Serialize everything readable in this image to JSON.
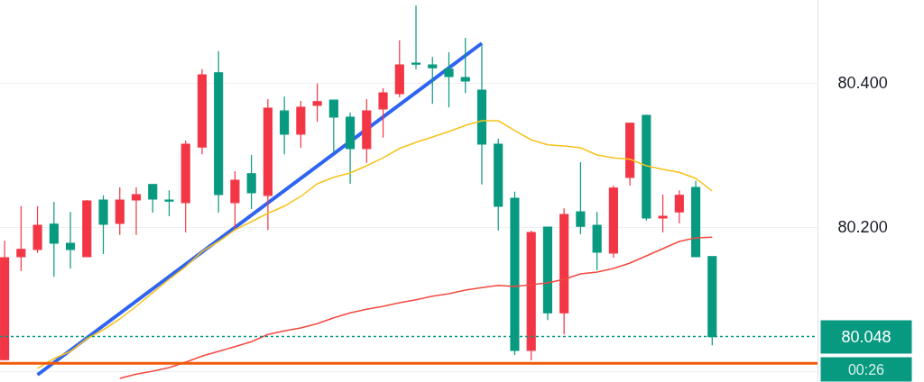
{
  "chart_data": {
    "type": "candlestick",
    "categories": [
      null,
      null,
      null,
      null,
      null,
      null,
      null,
      null,
      null,
      null,
      null,
      null,
      null,
      null,
      null,
      null,
      null,
      null,
      null,
      null,
      null,
      null,
      null,
      null,
      null,
      null,
      null,
      null,
      null,
      null,
      null,
      null,
      null,
      null,
      null,
      null,
      null,
      null,
      null,
      null,
      null,
      null,
      null,
      null
    ],
    "ohlc": [
      [
        80.016,
        80.181,
        80.015,
        80.1575
      ],
      [
        80.159,
        80.229,
        80.139,
        80.169
      ],
      [
        80.169,
        80.229,
        80.164,
        80.2025
      ],
      [
        80.204,
        80.235,
        80.131,
        80.1775
      ],
      [
        80.1775,
        80.221,
        80.1425,
        80.169
      ],
      [
        80.159,
        80.2375,
        80.159,
        80.236
      ],
      [
        80.2375,
        80.244,
        80.1625,
        80.204
      ],
      [
        80.205,
        80.255,
        80.189,
        80.2375
      ],
      [
        80.2375,
        80.255,
        80.189,
        80.245
      ],
      [
        80.259,
        80.259,
        80.22,
        80.239
      ],
      [
        80.2375,
        80.251,
        80.215,
        80.236
      ],
      [
        80.234,
        80.32,
        80.1925,
        80.315
      ],
      [
        80.311,
        80.419,
        80.301,
        80.411
      ],
      [
        80.414,
        80.444,
        80.22,
        80.245
      ],
      [
        80.234,
        80.2775,
        80.196,
        80.265
      ],
      [
        80.274,
        80.3,
        80.225,
        80.2475
      ],
      [
        80.244,
        80.3775,
        80.196,
        80.365
      ],
      [
        80.361,
        80.381,
        80.301,
        80.329
      ],
      [
        80.329,
        80.375,
        80.31,
        80.366
      ],
      [
        80.369,
        80.399,
        80.346,
        80.374
      ],
      [
        80.376,
        80.376,
        80.3025,
        80.3525
      ],
      [
        80.3525,
        80.359,
        80.26,
        80.309
      ],
      [
        80.309,
        80.3775,
        80.289,
        80.361
      ],
      [
        80.364,
        80.3925,
        80.324,
        80.386
      ],
      [
        80.385,
        80.459,
        80.38,
        80.425
      ],
      [
        80.4275,
        80.5075,
        80.419,
        80.426
      ],
      [
        80.425,
        80.436,
        80.371,
        80.421
      ],
      [
        80.419,
        80.4425,
        80.366,
        80.409
      ],
      [
        80.4075,
        80.4625,
        80.386,
        80.4025
      ],
      [
        80.39,
        80.454,
        80.259,
        80.315
      ],
      [
        80.315,
        80.3225,
        80.195,
        80.229
      ],
      [
        80.24,
        80.249,
        80.0225,
        80.029
      ],
      [
        80.029,
        80.195,
        80.015,
        80.1925
      ],
      [
        80.2,
        80.2,
        80.071,
        80.081
      ],
      [
        80.081,
        80.226,
        80.051,
        80.2175
      ],
      [
        80.221,
        80.29,
        80.19,
        80.201
      ],
      [
        80.2025,
        80.221,
        80.14,
        80.165
      ],
      [
        80.164,
        80.2575,
        80.1575,
        80.254
      ],
      [
        80.269,
        80.345,
        80.2575,
        80.344
      ],
      [
        80.355,
        80.356,
        80.209,
        80.2125
      ],
      [
        80.2125,
        80.245,
        80.1925,
        80.215
      ],
      [
        80.221,
        80.251,
        80.205,
        80.244
      ],
      [
        80.255,
        80.264,
        80.159,
        80.159
      ],
      [
        80.159,
        80.159,
        80.036,
        80.048
      ]
    ],
    "colors": [
      "#f23645",
      "#f23645",
      "#f23645",
      "#089981",
      "#089981",
      "#f23645",
      "#089981",
      "#f23645",
      "#f23645",
      "#089981",
      "#089981",
      "#f23645",
      "#f23645",
      "#089981",
      "#f23645",
      "#089981",
      "#f23645",
      "#089981",
      "#f23645",
      "#f23645",
      "#089981",
      "#089981",
      "#f23645",
      "#f23645",
      "#f23645",
      "#089981",
      "#089981",
      "#089981",
      "#089981",
      "#089981",
      "#089981",
      "#089981",
      "#f23645",
      "#089981",
      "#f23645",
      "#089981",
      "#089981",
      "#f23645",
      "#f23645",
      "#089981",
      "#f23645",
      "#f23645",
      "#089981",
      "#089981"
    ],
    "series": [
      {
        "type": "line",
        "color": "#f7c21a",
        "values": [
          null,
          null,
          80.004,
          80.0175,
          80.0275,
          80.045,
          80.0575,
          80.0725,
          80.09,
          80.109,
          80.1275,
          80.145,
          80.166,
          80.18,
          80.196,
          80.2075,
          80.219,
          80.229,
          80.2425,
          80.26,
          80.269,
          80.275,
          80.285,
          80.296,
          80.309,
          80.3175,
          80.325,
          80.3325,
          80.341,
          80.3475,
          80.3475,
          80.334,
          80.321,
          80.314,
          80.3125,
          80.31,
          80.3,
          80.296,
          80.294,
          80.285,
          80.28,
          80.276,
          80.2675,
          80.25
        ]
      },
      {
        "type": "line",
        "color": "#f4493f",
        "values": [
          null,
          null,
          null,
          null,
          null,
          null,
          null,
          79.99,
          79.996,
          80.0,
          80.005,
          80.0125,
          80.021,
          80.0275,
          80.034,
          80.041,
          80.051,
          80.056,
          80.06,
          80.066,
          80.074,
          80.081,
          80.086,
          80.09,
          80.095,
          80.099,
          80.104,
          80.1075,
          80.1125,
          80.116,
          80.119,
          80.1175,
          80.12,
          80.1225,
          80.1275,
          80.135,
          80.1375,
          80.1425,
          80.15,
          80.16,
          80.17,
          80.18,
          80.185,
          80.186
        ]
      },
      {
        "type": "line",
        "color": "#2f64f0",
        "values": [
          null,
          null,
          79.995,
          null,
          null,
          null,
          null,
          null,
          null,
          null,
          null,
          null,
          null,
          null,
          null,
          null,
          null,
          null,
          null,
          null,
          null,
          null,
          null,
          null,
          null,
          null,
          null,
          null,
          null,
          80.455,
          null,
          null,
          null,
          null,
          null,
          null,
          null,
          null,
          null,
          null,
          null,
          null,
          null,
          null
        ]
      }
    ],
    "ylim": [
      79.985,
      80.515
    ],
    "yticks": [
      {
        "value": 80.0,
        "label": null
      },
      {
        "value": 80.2,
        "label": "80.200"
      },
      {
        "value": 80.4,
        "label": "80.400"
      }
    ],
    "grid": "y",
    "ref_lines": [
      {
        "axis": "y",
        "value": 80.048,
        "label": "80.048",
        "color": "#089981",
        "line_style": "dotted"
      },
      {
        "axis": "y",
        "value": 80.011,
        "color": "#f05a0a",
        "line_style": "solid"
      }
    ],
    "annotations": [
      "00:26"
    ]
  }
}
